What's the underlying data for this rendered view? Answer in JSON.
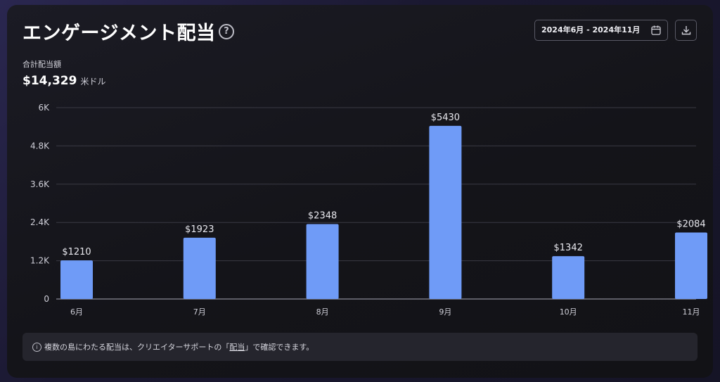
{
  "header": {
    "title": "エンゲージメント配当",
    "help_glyph": "?",
    "date_range": "2024年6月 - 2024年11月"
  },
  "summary": {
    "label": "合計配当額",
    "value": "$14,329",
    "unit": "米ドル"
  },
  "chart_data": {
    "type": "bar",
    "categories": [
      "6月",
      "7月",
      "8月",
      "9月",
      "10月",
      "11月"
    ],
    "values": [
      1210,
      1923,
      2348,
      5430,
      1342,
      2084
    ],
    "data_labels": [
      "$1210",
      "$1923",
      "$2348",
      "$5430",
      "$1342",
      "$2084"
    ],
    "yticks": [
      0,
      1200,
      2400,
      3600,
      4800,
      6000
    ],
    "ytick_labels": [
      "0",
      "1.2K",
      "2.4K",
      "3.6K",
      "4.8K",
      "6K"
    ],
    "ylim": [
      0,
      6000
    ],
    "title": "",
    "xlabel": "",
    "ylabel": "",
    "grid": true,
    "bar_color": "#6f9bf7"
  },
  "footer_note": {
    "icon_glyph": "i",
    "text_before": "複数の島にわたる配当は、クリエイターサポートの「",
    "link_text": "配当",
    "text_after": "」で確認できます。"
  }
}
